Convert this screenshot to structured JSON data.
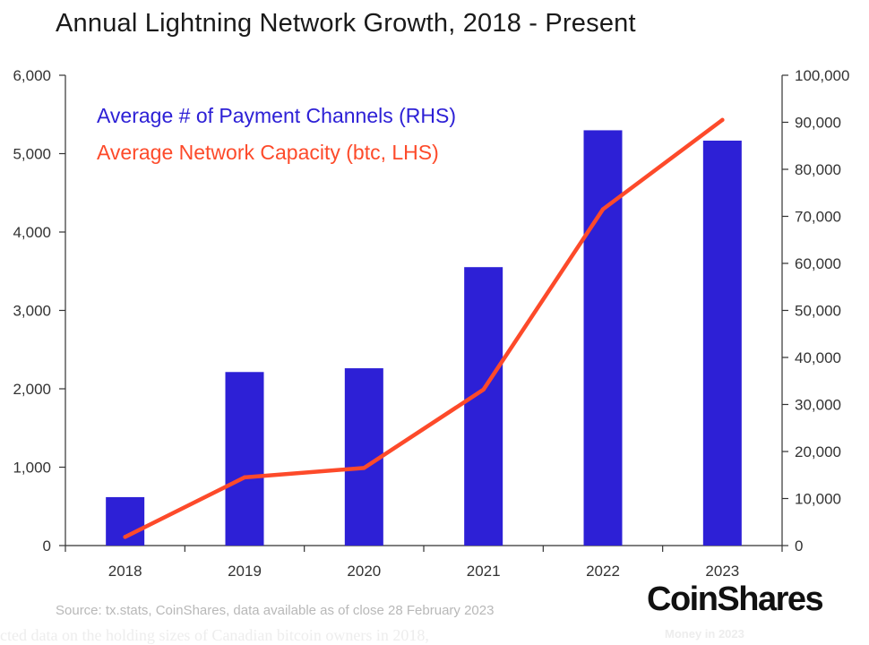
{
  "chart_data": {
    "type": "bar",
    "title": "Annual Lightning Network Growth, 2018 - Present",
    "categories": [
      "2018",
      "2019",
      "2020",
      "2021",
      "2022",
      "2023"
    ],
    "left_axis": {
      "ylim": [
        0,
        6000
      ],
      "ticks": [
        0,
        1000,
        2000,
        3000,
        4000,
        5000,
        6000
      ],
      "tick_labels": [
        "0",
        "1,000",
        "2,000",
        "3,000",
        "4,000",
        "5,000",
        "6,000"
      ]
    },
    "right_axis": {
      "ylim": [
        0,
        100000
      ],
      "ticks": [
        0,
        10000,
        20000,
        30000,
        40000,
        50000,
        60000,
        70000,
        80000,
        90000,
        100000
      ],
      "tick_labels": [
        "0",
        "10,000",
        "20,000",
        "30,000",
        "40,000",
        "50,000",
        "60,000",
        "70,000",
        "80,000",
        "90,000",
        "100,000"
      ]
    },
    "series": [
      {
        "name": "Average # of Payment Channels (RHS)",
        "type": "bar",
        "axis": "right",
        "color": "#2d20d6",
        "values": [
          10300,
          36900,
          37700,
          59200,
          88300,
          86100
        ]
      },
      {
        "name": "Average Network Capacity (btc, LHS)",
        "type": "line",
        "axis": "left",
        "color": "#fd4a2a",
        "values": [
          110,
          870,
          990,
          1990,
          4290,
          5430
        ]
      }
    ],
    "legend": "top-left",
    "grid": false
  },
  "source": "Source: tx.stats, CoinShares, data available as of close 28 February 2023",
  "logo_text": "CoinShares",
  "logo_caption": "Money in 2023",
  "bottom_text": "cted data on the holding sizes of Canadian bitcoin owners in 2018,"
}
